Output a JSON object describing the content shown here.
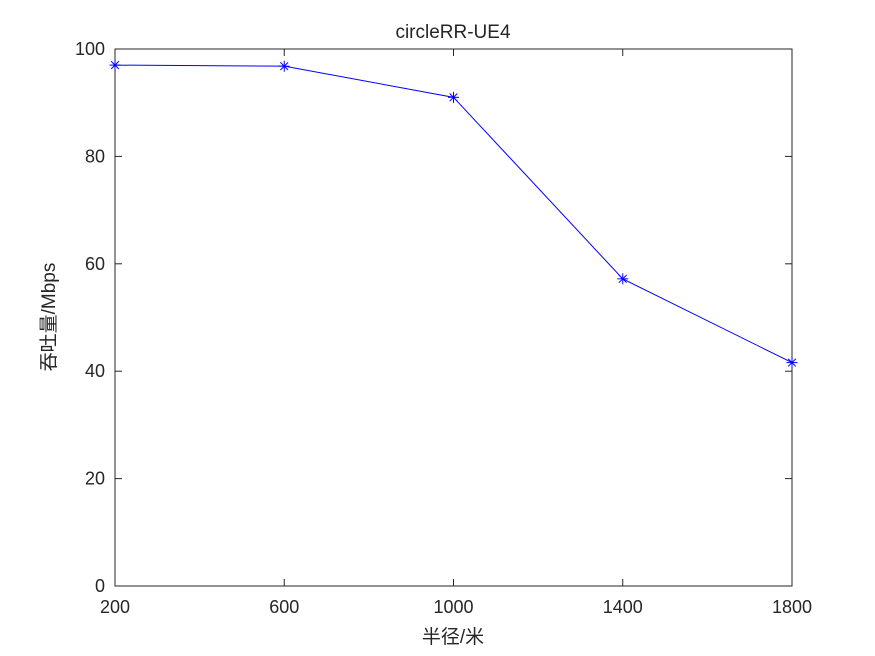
{
  "chart_data": {
    "type": "line",
    "title": "circleRR-UE4",
    "xlabel": "半径/米",
    "ylabel": "吞吐量/Mbps",
    "xlim": [
      200,
      1800
    ],
    "ylim": [
      0,
      100
    ],
    "xticks": [
      "200",
      "600",
      "1000",
      "1400",
      "1800"
    ],
    "yticks": [
      "0",
      "20",
      "40",
      "60",
      "80",
      "100"
    ],
    "grid": false,
    "series": [
      {
        "x": [
          200,
          600,
          1000,
          1400,
          1800
        ],
        "y": [
          97.0,
          96.8,
          91.0,
          57.2,
          41.6
        ],
        "color": "#0000ff",
        "marker": "asterisk"
      }
    ]
  }
}
